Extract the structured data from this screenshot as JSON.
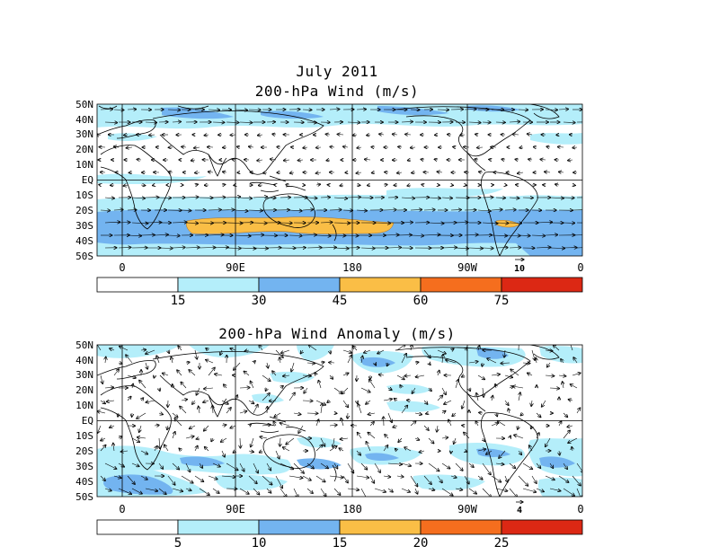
{
  "title": "July 2011",
  "panels": [
    {
      "id": "wind",
      "title": "200-hPa Wind (m/s)",
      "lat_labels": [
        "50N",
        "40N",
        "30N",
        "20N",
        "10N",
        "EQ",
        "10S",
        "20S",
        "30S",
        "40S",
        "50S"
      ],
      "lon_labels": [
        "0",
        "90E",
        "180",
        "90W",
        "0"
      ],
      "reference_vector": "10",
      "colorbar": {
        "labels": [
          "15",
          "30",
          "45",
          "60",
          "75"
        ],
        "colors": [
          "#ffffff",
          "#b4eefa",
          "#73b4f0",
          "#fabe46",
          "#f56e1e",
          "#dc2814"
        ]
      }
    },
    {
      "id": "anomaly",
      "title": "200-hPa Wind Anomaly (m/s)",
      "lat_labels": [
        "50N",
        "40N",
        "30N",
        "20N",
        "10N",
        "EQ",
        "10S",
        "20S",
        "30S",
        "40S",
        "50S"
      ],
      "lon_labels": [
        "0",
        "90E",
        "180",
        "90W",
        "0"
      ],
      "reference_vector": "4",
      "colorbar": {
        "labels": [
          "5",
          "10",
          "15",
          "20",
          "25"
        ],
        "colors": [
          "#ffffff",
          "#b4eefa",
          "#73b4f0",
          "#fabe46",
          "#f56e1e",
          "#dc2814"
        ]
      }
    }
  ]
}
